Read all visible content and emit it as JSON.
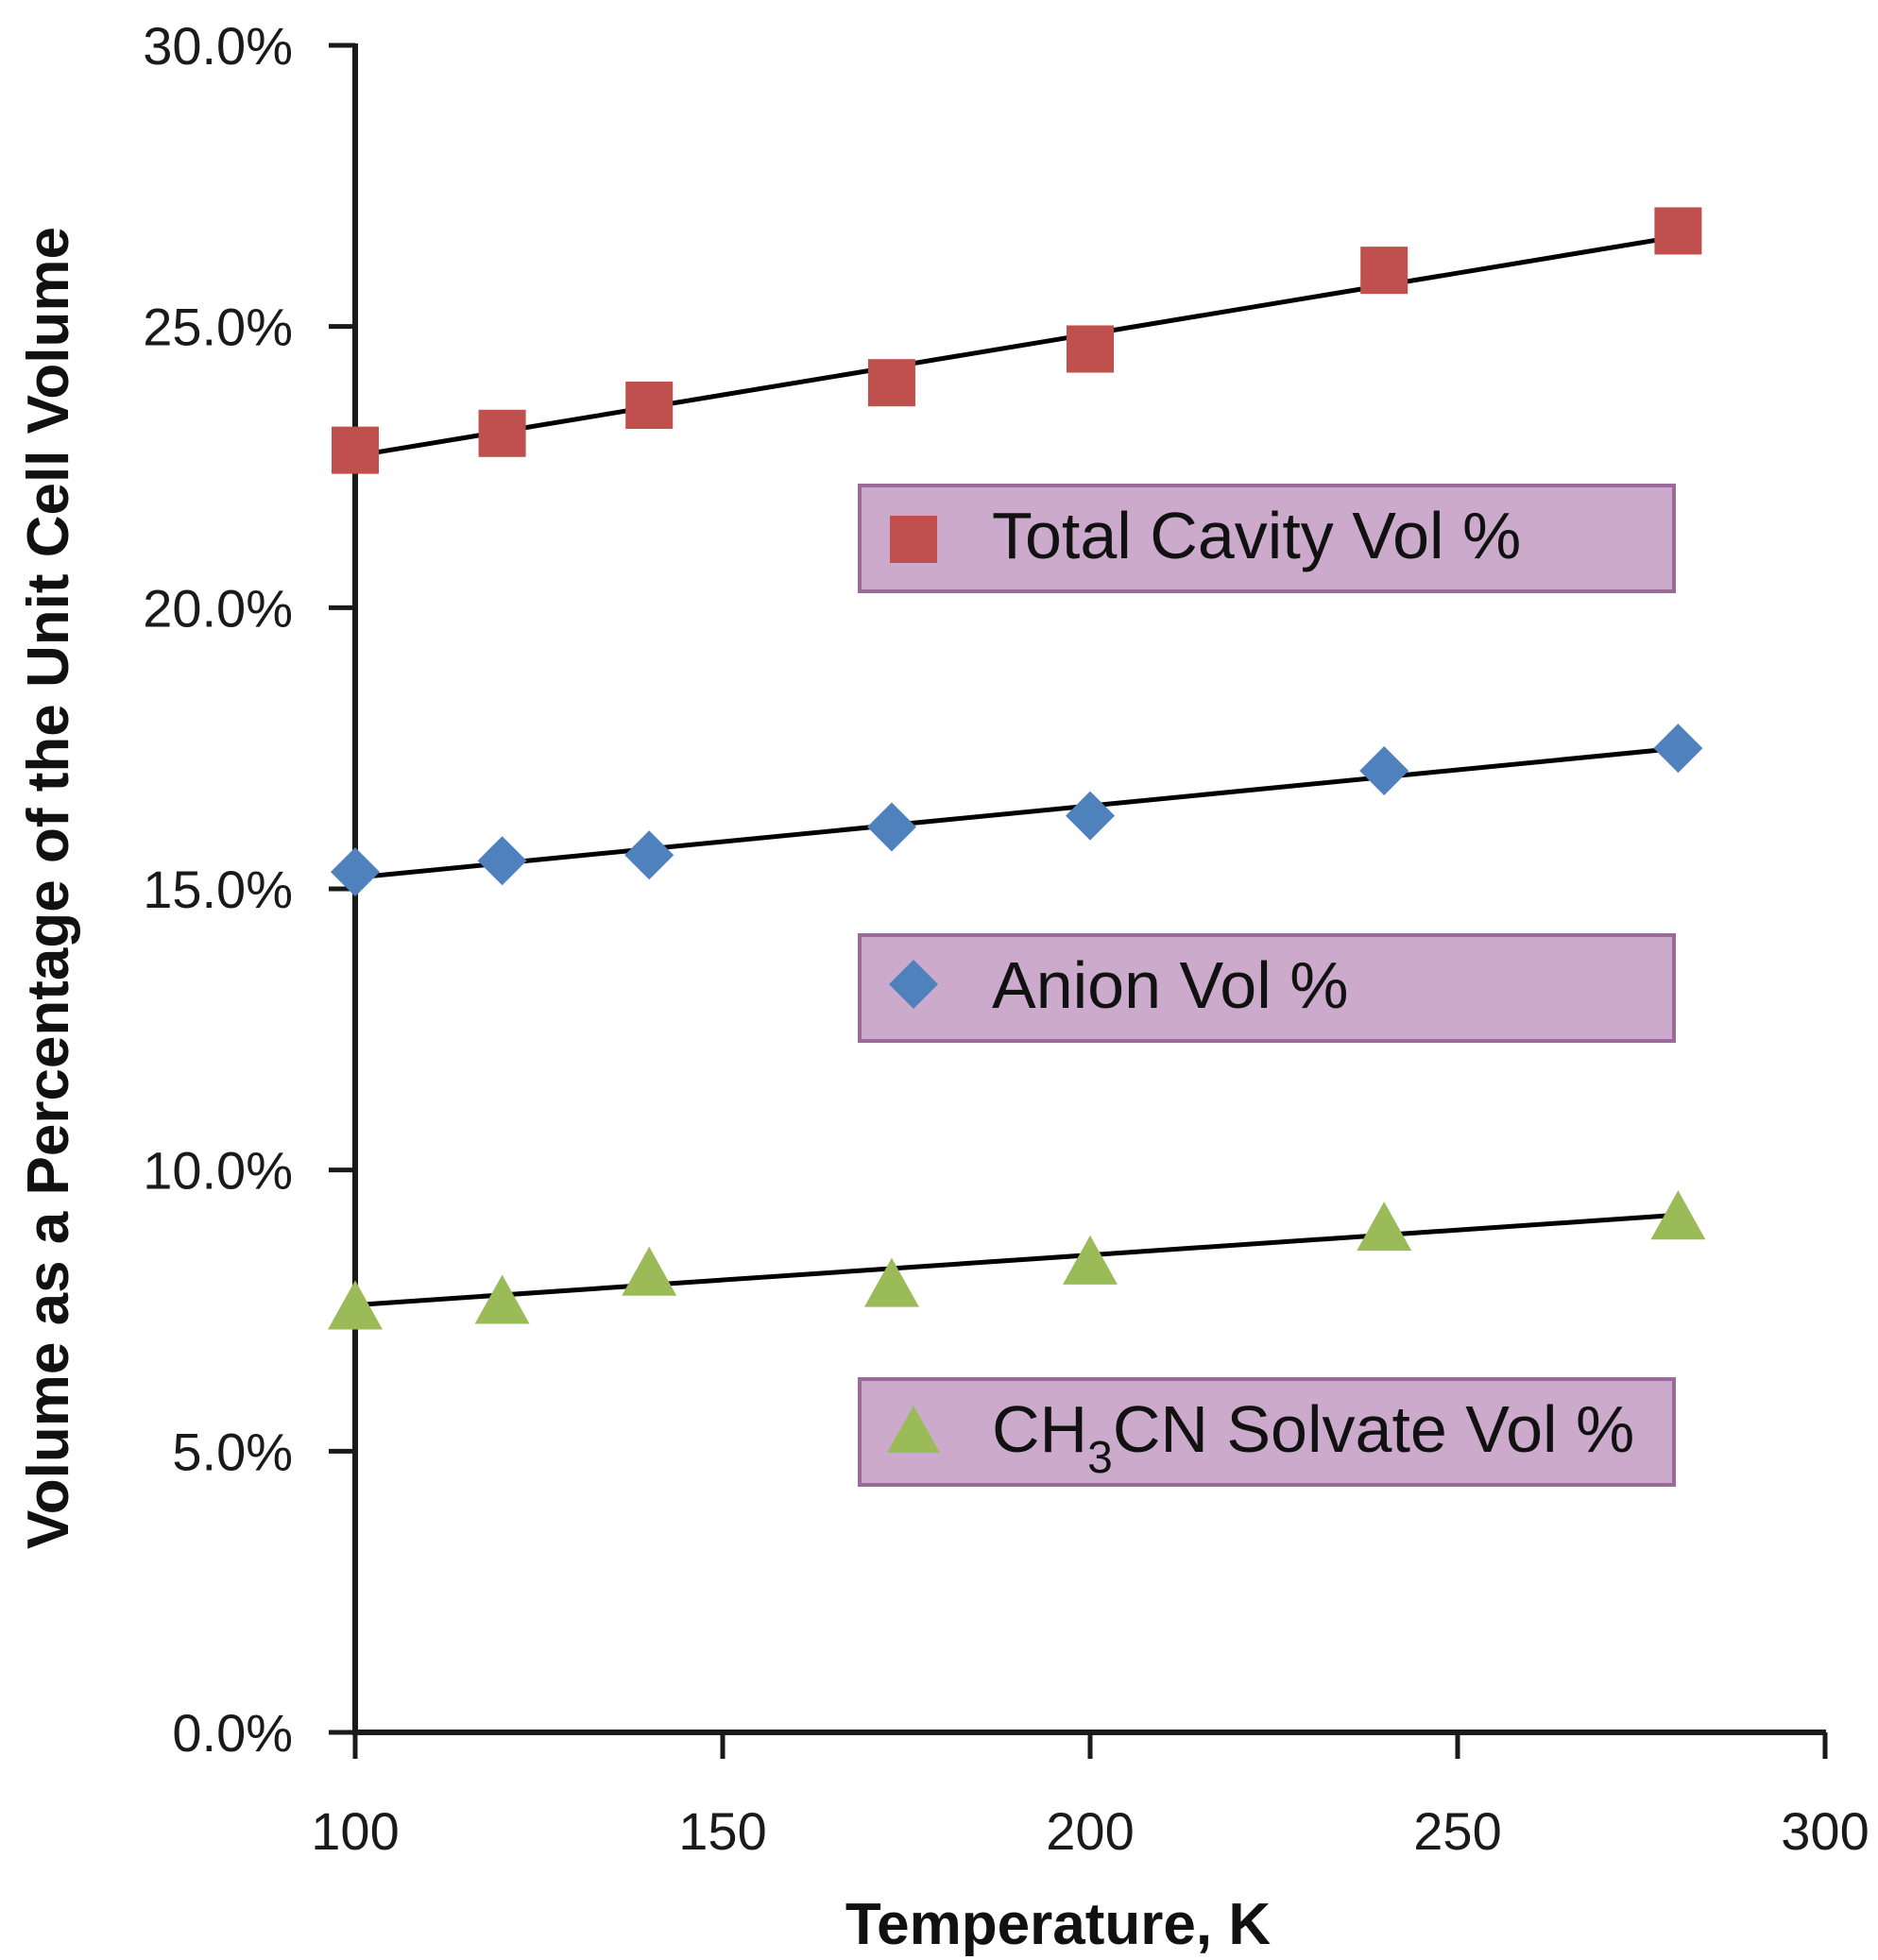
{
  "chart_data": {
    "type": "scatter",
    "title": "",
    "xlabel": "Temperature, K",
    "ylabel": "Volume as a Percentage of the Unit Cell Volume",
    "xlim": [
      100,
      300
    ],
    "ylim": [
      0,
      30
    ],
    "x_ticks": [
      "100",
      "150",
      "200",
      "250",
      "300"
    ],
    "y_ticks": [
      "0.0%",
      "5.0%",
      "10.0%",
      "15.0%",
      "20.0%",
      "25.0%",
      "30.0%"
    ],
    "x_tick_values": [
      100,
      150,
      200,
      250,
      300
    ],
    "y_tick_values": [
      0,
      5,
      10,
      15,
      20,
      25,
      30
    ],
    "grid": false,
    "series": [
      {
        "name": "Total Cavity Vol %",
        "marker": "square",
        "color": "#c0504d",
        "x": [
          100,
          120,
          140,
          173,
          200,
          240,
          280
        ],
        "y": [
          22.8,
          23.1,
          23.6,
          24.0,
          24.6,
          26.0,
          26.7
        ],
        "trendline": [
          [
            100,
            22.7
          ],
          [
            280,
            26.6
          ]
        ]
      },
      {
        "name": "Anion Vol %",
        "marker": "diamond",
        "color": "#4f81bd",
        "x": [
          100,
          120,
          140,
          173,
          200,
          240,
          280
        ],
        "y": [
          15.3,
          15.5,
          15.6,
          16.1,
          16.3,
          17.1,
          17.5
        ],
        "trendline": [
          [
            100,
            15.2
          ],
          [
            280,
            17.5
          ]
        ]
      },
      {
        "name": "CH3CN Solvate Vol %",
        "marker": "triangle",
        "color": "#9bbb59",
        "x": [
          100,
          120,
          140,
          173,
          200,
          240,
          280
        ],
        "y": [
          7.5,
          7.6,
          8.1,
          7.9,
          8.3,
          8.9,
          9.1
        ],
        "trendline": [
          [
            100,
            7.6
          ],
          [
            280,
            9.2
          ]
        ]
      }
    ],
    "legend": [
      {
        "marker": "square",
        "text": "Total Cavity Vol %"
      },
      {
        "marker": "diamond",
        "text": "Anion Vol %"
      },
      {
        "marker": "triangle",
        "text_main": "CH",
        "text_sub": "3",
        "text_rest": "CN Solvate Vol %"
      }
    ],
    "legend_style": {
      "fill": "#ccaacc",
      "border": "#9a6a9a"
    },
    "axis_color": "#1a1a1a",
    "trendline_color": "#000000"
  }
}
